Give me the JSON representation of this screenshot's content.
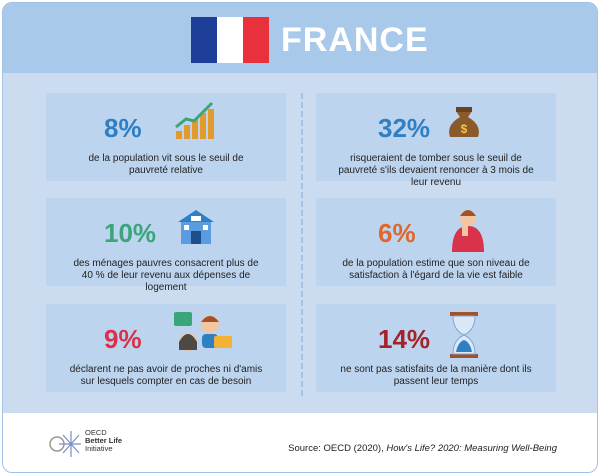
{
  "header": {
    "title": "FRANCE"
  },
  "cards": [
    {
      "value": "8%",
      "color": "#2f7fc4",
      "text": "de la population vit sous le seuil de pauvreté relative"
    },
    {
      "value": "10%",
      "color": "#3aa57a",
      "text": "des ménages pauvres consacrent plus de 40 % de leur revenu aux dépenses de logement"
    },
    {
      "value": "9%",
      "color": "#d8334a",
      "text": "déclarent ne pas avoir de proches ni d'amis sur lesquels compter en cas de besoin"
    },
    {
      "value": "32%",
      "color": "#2f7fc4",
      "text": "risqueraient de tomber sous le seuil de pauvreté s'ils devaient renoncer à 3 mois de leur revenu"
    },
    {
      "value": "6%",
      "color": "#e0672c",
      "text": "de la population estime que son niveau de satisfaction à l'égard de la vie est faible"
    },
    {
      "value": "14%",
      "color": "#a3232a",
      "text": "ne sont pas satisfaits de la manière dont ils passent leur temps"
    }
  ],
  "footer": {
    "logo": [
      "OECD",
      "Better Life",
      "Initiative"
    ],
    "source_prefix": "Source: OECD (2020), ",
    "source_title": "How's Life? 2020: Measuring Well-Being"
  }
}
